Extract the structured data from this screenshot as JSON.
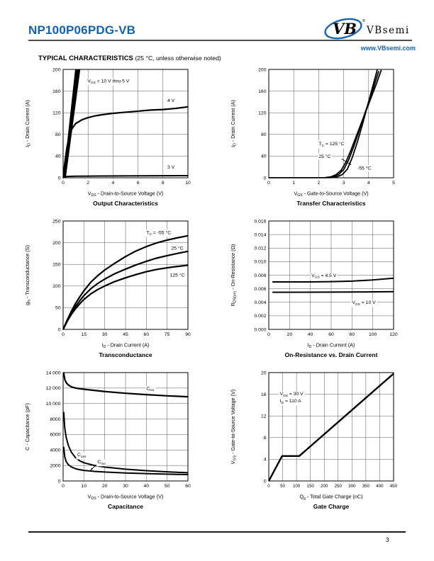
{
  "page": {
    "page_number": "3"
  },
  "header": {
    "part_number": "NP100P06PDG-VB",
    "logo_monogram": "VB",
    "brand": "VBsemi",
    "brand_registered": "®",
    "brand_url": "www.VBsemi.com",
    "accent_color": "#1362ae"
  },
  "section": {
    "title": "TYPICAL CHARACTERISTICS",
    "subtitle": "(25 °C, unless otherwise noted)"
  },
  "chart_data": [
    {
      "id": "output-characteristics",
      "type": "line",
      "title": "Output Characteristics",
      "xlabel": "V_{DS} - Drain-to-Source Voltage (V)",
      "ylabel": "I_{D} - Drain Current (A)",
      "xlim": [
        0,
        10
      ],
      "ylim": [
        0,
        200
      ],
      "xticks": [
        0,
        2,
        4,
        6,
        8,
        10
      ],
      "yticks": [
        0,
        40,
        80,
        120,
        160,
        200
      ],
      "grid": true,
      "legend": "none",
      "series": [
        {
          "name": "VGS = 10 V thru 5 V",
          "style": "band",
          "points": [
            [
              0.03,
              0
            ],
            [
              0.98,
              200
            ],
            [
              1.36,
              200
            ],
            [
              0.2,
              0
            ]
          ]
        },
        {
          "name": "VGS = 4 V",
          "width": 2.2,
          "points": [
            [
              0,
              0
            ],
            [
              0.15,
              30
            ],
            [
              0.3,
              55
            ],
            [
              0.5,
              78
            ],
            [
              0.7,
              90
            ],
            [
              1,
              100
            ],
            [
              1.5,
              107
            ],
            [
              2,
              111
            ],
            [
              2.5,
              114
            ],
            [
              3,
              116
            ],
            [
              4,
              119
            ],
            [
              5,
              121
            ],
            [
              6,
              123
            ],
            [
              7,
              125
            ],
            [
              8,
              126
            ],
            [
              9,
              128
            ],
            [
              10,
              131
            ]
          ]
        },
        {
          "name": "VGS = 3 V",
          "width": 2,
          "points": [
            [
              0,
              0
            ],
            [
              0.3,
              2.5
            ],
            [
              1,
              3
            ],
            [
              3,
              3.2
            ],
            [
              6,
              3.6
            ],
            [
              10,
              4
            ]
          ]
        }
      ],
      "annotations": [
        {
          "text": "V_{GS} = 10 V thru 5 V",
          "x": 1.95,
          "y": 179
        },
        {
          "text": "4 V",
          "x": 8.35,
          "y": 143
        },
        {
          "text": "3 V",
          "x": 8.35,
          "y": 20
        }
      ]
    },
    {
      "id": "transfer-characteristics",
      "type": "line",
      "title": "Transfer Characteristics",
      "xlabel": "V_{GS} - Gate-to-Source Voltage (V)",
      "ylabel": "I_{D} - Drain Current (A)",
      "xlim": [
        0,
        5
      ],
      "ylim": [
        0,
        200
      ],
      "xticks": [
        0,
        1,
        2,
        3,
        4,
        5
      ],
      "yticks": [
        0,
        40,
        80,
        120,
        160,
        200
      ],
      "grid": true,
      "legend": "none",
      "series": [
        {
          "name": "TC = 125 °C",
          "width": 1.8,
          "points": [
            [
              0,
              0
            ],
            [
              2.2,
              0
            ],
            [
              2.5,
              2
            ],
            [
              2.7,
              6
            ],
            [
              2.9,
              14
            ],
            [
              3.1,
              30
            ],
            [
              3.3,
              52
            ],
            [
              3.5,
              76
            ],
            [
              3.7,
              100
            ],
            [
              3.9,
              124
            ],
            [
              4.1,
              148
            ],
            [
              4.3,
              172
            ],
            [
              4.5,
              198
            ]
          ]
        },
        {
          "name": "TC = 25 °C",
          "width": 1.8,
          "points": [
            [
              0,
              0
            ],
            [
              2.35,
              0
            ],
            [
              2.6,
              2
            ],
            [
              2.8,
              6
            ],
            [
              3.0,
              15
            ],
            [
              3.2,
              33
            ],
            [
              3.4,
              57
            ],
            [
              3.6,
              84
            ],
            [
              3.8,
              112
            ],
            [
              4.0,
              139
            ],
            [
              4.2,
              167
            ],
            [
              4.4,
              196
            ]
          ]
        },
        {
          "name": "TC = -55 °C",
          "width": 1.8,
          "points": [
            [
              0,
              0
            ],
            [
              2.5,
              0
            ],
            [
              2.75,
              2
            ],
            [
              2.95,
              6
            ],
            [
              3.15,
              16
            ],
            [
              3.35,
              38
            ],
            [
              3.55,
              66
            ],
            [
              3.75,
              98
            ],
            [
              3.95,
              132
            ],
            [
              4.15,
              166
            ],
            [
              4.35,
              200
            ]
          ]
        }
      ],
      "annotations": [
        {
          "text": "T_{C} = 125 °C",
          "x": 2.0,
          "y": 63
        },
        {
          "text": "25 °C",
          "x": 2.0,
          "y": 40
        },
        {
          "text": "-55 °C",
          "x": 3.55,
          "y": 18
        }
      ],
      "arrows": [
        {
          "from": [
            2.92,
            35
          ],
          "to": [
            3.3,
            24
          ]
        }
      ]
    },
    {
      "id": "transconductance",
      "type": "line",
      "title": "Transconductance",
      "xlabel": "I_{D} - Drain Current (A)",
      "ylabel": "g_{fs} - Transconductance (S)",
      "xlim": [
        0,
        90
      ],
      "ylim": [
        0,
        250
      ],
      "xticks": [
        0,
        15,
        30,
        45,
        60,
        75,
        90
      ],
      "yticks": [
        0,
        50,
        100,
        150,
        200,
        250
      ],
      "grid": true,
      "legend": "none",
      "series": [
        {
          "name": "TC = -55 °C",
          "width": 2.2,
          "points": [
            [
              0,
              0
            ],
            [
              3,
              22
            ],
            [
              6,
              42
            ],
            [
              9,
              60
            ],
            [
              12,
              75
            ],
            [
              15,
              89
            ],
            [
              20,
              109
            ],
            [
              25,
              124
            ],
            [
              30,
              137
            ],
            [
              37,
              152
            ],
            [
              45,
              168
            ],
            [
              52,
              180
            ],
            [
              60,
              191
            ],
            [
              67,
              199
            ],
            [
              75,
              206
            ],
            [
              82,
              211
            ],
            [
              90,
              216
            ]
          ]
        },
        {
          "name": "TC = 25 °C",
          "width": 2.2,
          "points": [
            [
              0,
              0
            ],
            [
              3,
              20
            ],
            [
              6,
              38
            ],
            [
              9,
              53
            ],
            [
              12,
              66
            ],
            [
              15,
              78
            ],
            [
              20,
              94
            ],
            [
              25,
              106
            ],
            [
              30,
              116
            ],
            [
              37,
              128
            ],
            [
              45,
              139
            ],
            [
              52,
              148
            ],
            [
              60,
              157
            ],
            [
              67,
              164
            ],
            [
              75,
              170
            ],
            [
              82,
              175
            ],
            [
              90,
              180
            ]
          ]
        },
        {
          "name": "TC = 125 °C",
          "width": 2.2,
          "points": [
            [
              0,
              0
            ],
            [
              3,
              19
            ],
            [
              6,
              35
            ],
            [
              9,
              48
            ],
            [
              12,
              59
            ],
            [
              15,
              69
            ],
            [
              20,
              82
            ],
            [
              25,
              92
            ],
            [
              30,
              100
            ],
            [
              37,
              110
            ],
            [
              45,
              119
            ],
            [
              52,
              126
            ],
            [
              60,
              133
            ],
            [
              67,
              138
            ],
            [
              75,
              142
            ],
            [
              82,
              145
            ],
            [
              90,
              148
            ]
          ]
        }
      ],
      "annotations": [
        {
          "text": "T_{C} = -55 °C",
          "x": 60,
          "y": 224
        },
        {
          "text": "25 °C",
          "x": 78,
          "y": 188
        },
        {
          "text": "125 °C",
          "x": 77,
          "y": 126
        }
      ]
    },
    {
      "id": "on-resistance-vs-drain-current",
      "type": "line",
      "title": "On-Resistance vs. Drain Current",
      "xlabel": "I_{D} - Drain Current (A)",
      "ylabel": "R_{DS(on)} - On-Resistance (Ω)",
      "xlim": [
        0,
        120
      ],
      "ylim": [
        0,
        0.016
      ],
      "xticks": [
        0,
        20,
        40,
        60,
        80,
        100,
        120
      ],
      "yticks": [
        0,
        0.002,
        0.004,
        0.006,
        0.008,
        0.01,
        0.012,
        0.014,
        0.016
      ],
      "ytick_labels": [
        "0.000",
        "0.002",
        "0.004",
        "0.006",
        "0.008",
        "0.010",
        "0.012",
        "0.014",
        "0.016"
      ],
      "grid": true,
      "legend": "none",
      "series": [
        {
          "name": "VGS = 4.5 V",
          "width": 2,
          "points": [
            [
              4,
              0.007
            ],
            [
              20,
              0.007
            ],
            [
              40,
              0.00701
            ],
            [
              60,
              0.00705
            ],
            [
              80,
              0.00712
            ],
            [
              100,
              0.0073
            ],
            [
              120,
              0.00755
            ]
          ]
        },
        {
          "name": "VGS = 10 V",
          "width": 2,
          "points": [
            [
              4,
              0.00548
            ],
            [
              40,
              0.00549
            ],
            [
              80,
              0.00551
            ],
            [
              120,
              0.00557
            ]
          ]
        }
      ],
      "annotations": [
        {
          "text": "V_{GS} = 4.5 V",
          "x": 41,
          "y": 0.008
        },
        {
          "text": "V_{GS} = 10 V",
          "x": 80,
          "y": 0.004
        }
      ]
    },
    {
      "id": "capacitance",
      "type": "line",
      "title": "Capacitance",
      "xlabel": "V_{DS} - Drain-to-Source Voltage (V)",
      "ylabel": "C - Capacitance (pF)",
      "xlim": [
        0,
        60
      ],
      "ylim": [
        0,
        14000
      ],
      "xticks": [
        0,
        10,
        20,
        30,
        40,
        50,
        60
      ],
      "yticks": [
        0,
        2000,
        4000,
        6000,
        8000,
        10000,
        12000,
        14000
      ],
      "ytick_labels": [
        "0",
        "2000",
        "4000",
        "6000",
        "8000",
        "10 000",
        "12 000",
        "14 000"
      ],
      "grid": true,
      "legend": "none",
      "series": [
        {
          "name": "Ciss",
          "width": 2.2,
          "points": [
            [
              0.3,
              13950
            ],
            [
              0.8,
              13100
            ],
            [
              1.5,
              12700
            ],
            [
              2.5,
              12400
            ],
            [
              4,
              12150
            ],
            [
              6,
              12000
            ],
            [
              10,
              11850
            ],
            [
              15,
              11700
            ],
            [
              20,
              11550
            ],
            [
              30,
              11330
            ],
            [
              40,
              11150
            ],
            [
              50,
              11000
            ],
            [
              60,
              10880
            ]
          ]
        },
        {
          "name": "Coss",
          "width": 2,
          "points": [
            [
              0.3,
              8850
            ],
            [
              0.8,
              6800
            ],
            [
              1.5,
              5600
            ],
            [
              2.5,
              4600
            ],
            [
              4,
              3700
            ],
            [
              6,
              3000
            ],
            [
              8,
              2600
            ],
            [
              10,
              2350
            ],
            [
              15,
              2000
            ],
            [
              20,
              1800
            ],
            [
              30,
              1520
            ],
            [
              40,
              1330
            ],
            [
              50,
              1180
            ],
            [
              60,
              1060
            ]
          ]
        },
        {
          "name": "Crss",
          "width": 2,
          "points": [
            [
              0.3,
              4350
            ],
            [
              0.8,
              3100
            ],
            [
              1.5,
              2500
            ],
            [
              2.5,
              2100
            ],
            [
              4,
              1800
            ],
            [
              6,
              1580
            ],
            [
              8,
              1450
            ],
            [
              10,
              1360
            ],
            [
              15,
              1240
            ],
            [
              20,
              1160
            ],
            [
              30,
              1030
            ],
            [
              40,
              950
            ],
            [
              50,
              880
            ],
            [
              60,
              820
            ]
          ]
        }
      ],
      "annotations": [
        {
          "text": "C_{iss}",
          "x": 40,
          "y": 12000
        },
        {
          "text": "C_{oss}",
          "x": 6.8,
          "y": 3400
        },
        {
          "text": "C_{rss}",
          "x": 16.5,
          "y": 2500
        }
      ],
      "arrows": [
        {
          "from": [
            16,
            2100
          ],
          "to": [
            13.2,
            1400
          ]
        }
      ]
    },
    {
      "id": "gate-charge",
      "type": "line",
      "title": "Gate Charge",
      "xlabel": "Q_{g}  -  Total Gate Charge (nC)",
      "ylabel": "V_{GS}  -  Gate-to-Source Voltage (V)",
      "xlim": [
        0,
        450
      ],
      "ylim": [
        0,
        20
      ],
      "xticks": [
        0,
        50,
        100,
        150,
        200,
        250,
        300,
        350,
        400,
        450
      ],
      "yticks": [
        0,
        4,
        8,
        12,
        16,
        20
      ],
      "xtick_font": 6.2,
      "grid": true,
      "legend": "none",
      "series": [
        {
          "name": "VGS",
          "width": 2.4,
          "points": [
            [
              0,
              0
            ],
            [
              48,
              4.6
            ],
            [
              110,
              4.6
            ],
            [
              450,
              19.8
            ]
          ]
        }
      ],
      "annotations": [
        {
          "text": "V_{DS} = 30 V",
          "x": 40,
          "y": 16.1
        },
        {
          "text": "I_{D} = 110 A",
          "x": 40,
          "y": 14.8
        }
      ]
    }
  ]
}
